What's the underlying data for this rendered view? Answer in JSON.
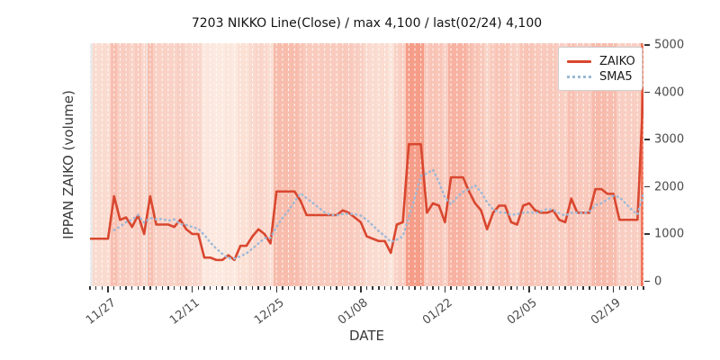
{
  "title": "7203 NIKKO Line(Close) / max 4,100 / last(02/24) 4,100",
  "axes": {
    "xlabel": "DATE",
    "ylabel": "IPPAN ZAIKO (volume)",
    "ytick_labels": [
      "0",
      "1000",
      "2000",
      "3000",
      "4000",
      "5000"
    ],
    "xtick_labels": [
      "11/27",
      "12/11",
      "12/25",
      "01/08",
      "01/22",
      "02/05",
      "02/19"
    ]
  },
  "legend": {
    "position": "upper right",
    "items": [
      {
        "label": "ZAIKO",
        "style": "solid",
        "color": "#d9472f"
      },
      {
        "label": "SMA5",
        "style": "dotted",
        "color": "#9bb9d8"
      }
    ]
  },
  "colors": {
    "zaiko_line": "#d9472f",
    "sma5_line": "#9bb9d8",
    "plot_background": "#e9e9e9",
    "gridline": "rgba(255,255,255,0.9)",
    "stripe_ramp": [
      {
        "t": 0.0,
        "rgb": [
          253,
          246,
          238
        ]
      },
      {
        "t": 0.15,
        "rgb": [
          251,
          228,
          217
        ]
      },
      {
        "t": 0.3,
        "rgb": [
          249,
          208,
          196
        ]
      },
      {
        "t": 0.5,
        "rgb": [
          247,
          183,
          167
        ]
      },
      {
        "t": 0.75,
        "rgb": [
          244,
          152,
          130
        ]
      },
      {
        "t": 1.0,
        "rgb": [
          240,
          118,
          92
        ]
      }
    ]
  },
  "chart_data": {
    "type": "line",
    "title": "7203 NIKKO Line(Close) / max 4,100 / last(02/24) 4,100",
    "xlabel": "DATE",
    "ylabel": "IPPAN ZAIKO (volume)",
    "ylim": [
      0,
      5000
    ],
    "yticks": [
      0,
      1000,
      2000,
      3000,
      4000,
      5000
    ],
    "xtick_indices": [
      3,
      17,
      31,
      45,
      59,
      73,
      87
    ],
    "grid": "vertical dashed white line per day",
    "background": "per-day stripe, red intensity proportional to ZAIKO value",
    "max_value": 4100,
    "last_date": "02/24",
    "last_value": 4100,
    "x_dates": [
      "11/24",
      "11/25",
      "11/26",
      "11/27",
      "11/28",
      "11/29",
      "11/30",
      "12/01",
      "12/02",
      "12/03",
      "12/04",
      "12/05",
      "12/06",
      "12/07",
      "12/08",
      "12/09",
      "12/10",
      "12/11",
      "12/12",
      "12/13",
      "12/14",
      "12/15",
      "12/16",
      "12/17",
      "12/18",
      "12/19",
      "12/20",
      "12/21",
      "12/22",
      "12/23",
      "12/24",
      "12/25",
      "12/26",
      "12/27",
      "12/28",
      "12/29",
      "12/30",
      "12/31",
      "01/01",
      "01/02",
      "01/03",
      "01/04",
      "01/05",
      "01/06",
      "01/07",
      "01/08",
      "01/09",
      "01/10",
      "01/11",
      "01/12",
      "01/13",
      "01/14",
      "01/15",
      "01/16",
      "01/17",
      "01/18",
      "01/19",
      "01/20",
      "01/21",
      "01/22",
      "01/23",
      "01/24",
      "01/25",
      "01/26",
      "01/27",
      "01/28",
      "01/29",
      "01/30",
      "01/31",
      "02/01",
      "02/02",
      "02/03",
      "02/04",
      "02/05",
      "02/06",
      "02/07",
      "02/08",
      "02/09",
      "02/10",
      "02/11",
      "02/12",
      "02/13",
      "02/14",
      "02/15",
      "02/16",
      "02/17",
      "02/18",
      "02/19",
      "02/20",
      "02/21",
      "02/22",
      "02/23",
      "02/24"
    ],
    "series": [
      {
        "name": "ZAIKO",
        "values": [
          900,
          900,
          900,
          900,
          1800,
          1300,
          1350,
          1150,
          1400,
          1000,
          1800,
          1200,
          1200,
          1200,
          1150,
          1300,
          1100,
          1000,
          1000,
          500,
          500,
          450,
          450,
          550,
          450,
          750,
          750,
          950,
          1100,
          1000,
          800,
          1900,
          1900,
          1900,
          1900,
          1700,
          1400,
          1400,
          1400,
          1400,
          1400,
          1400,
          1500,
          1450,
          1350,
          1250,
          950,
          900,
          850,
          850,
          600,
          1200,
          1250,
          2900,
          2900,
          2900,
          1450,
          1650,
          1600,
          1250,
          2200,
          2200,
          2200,
          1900,
          1650,
          1500,
          1100,
          1450,
          1600,
          1600,
          1250,
          1200,
          1600,
          1650,
          1500,
          1450,
          1450,
          1500,
          1300,
          1250,
          1750,
          1450,
          1450,
          1450,
          1950,
          1950,
          1850,
          1850,
          1300,
          1300,
          1300,
          1300,
          4100
        ]
      },
      {
        "name": "SMA5",
        "derived": "5-day moving average of ZAIKO"
      }
    ]
  }
}
